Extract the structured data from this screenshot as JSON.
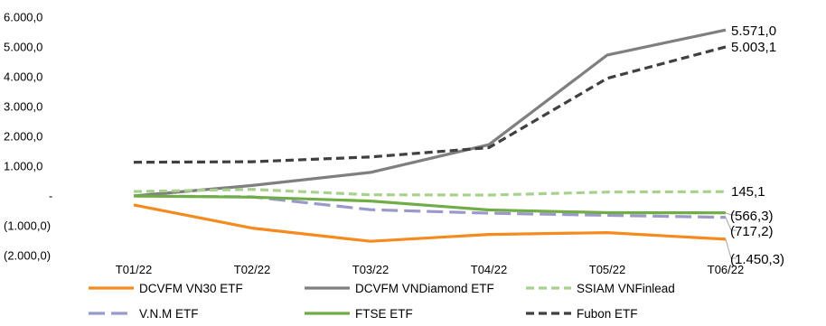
{
  "chart_data": {
    "type": "line",
    "title": "",
    "xlabel": "",
    "ylabel": "",
    "categories": [
      "T01/22",
      "T02/22",
      "T03/22",
      "T04/22",
      "T05/22",
      "T06/22"
    ],
    "ylim": [
      -2000,
      6000
    ],
    "yticks": [
      {
        "value": 6000,
        "label": "6.000,0"
      },
      {
        "value": 5000,
        "label": "5.000,0"
      },
      {
        "value": 4000,
        "label": "4.000,0"
      },
      {
        "value": 3000,
        "label": "3.000,0"
      },
      {
        "value": 2000,
        "label": "2.000,0"
      },
      {
        "value": 1000,
        "label": "1.000,0"
      },
      {
        "value": 0,
        "label": "-"
      },
      {
        "value": -1000,
        "label": "(1.000,0)"
      },
      {
        "value": -2000,
        "label": "(2.000,0)"
      }
    ],
    "grid": false,
    "legend_position": "bottom",
    "series": [
      {
        "name": "DCVFM VN30 ETF",
        "color": "#F58A1F",
        "dash": "solid",
        "values": [
          -300,
          -1080,
          -1520,
          -1290,
          -1230,
          -1450.3
        ],
        "end_label": "(1.450,3)"
      },
      {
        "name": "DCVFM VNDiamond ETF",
        "color": "#7F7F7F",
        "dash": "solid",
        "values": [
          0,
          350,
          790,
          1720,
          4730,
          5571.0
        ],
        "end_label": "5.571,0"
      },
      {
        "name": "SSIAM VNFinlead",
        "color": "#A9D18E",
        "dash": "dashed",
        "values": [
          150,
          220,
          40,
          30,
          130,
          145.1
        ],
        "end_label": "145,1"
      },
      {
        "name": "V.N.M ETF",
        "color": "#9999CC",
        "dash": "longdash",
        "values": [
          0,
          -30,
          -460,
          -580,
          -650,
          -717.2
        ],
        "end_label": "(717,2)"
      },
      {
        "name": "FTSE ETF",
        "color": "#70AD47",
        "dash": "solid",
        "values": [
          0,
          -40,
          -170,
          -470,
          -560,
          -566.3
        ],
        "end_label": "(566,3)"
      },
      {
        "name": "Fubon ETF",
        "color": "#404040",
        "dash": "dashed",
        "values": [
          1130,
          1150,
          1310,
          1620,
          3950,
          5003.1
        ],
        "end_label": "5.003,1"
      }
    ]
  }
}
